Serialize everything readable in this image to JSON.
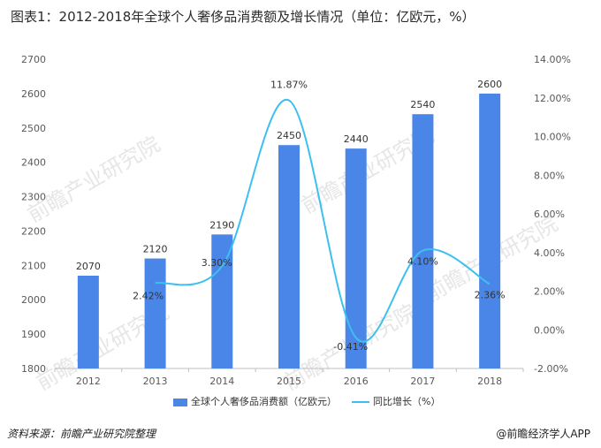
{
  "title": "图表1：2012-2018年全球个人奢侈品消费额及增长情况（单位：亿欧元，%）",
  "footer": {
    "source": "资料来源：前瞻产业研究院整理",
    "brand": "@前瞻经济学人APP"
  },
  "watermark": "前瞻产业研究院",
  "colors": {
    "bar": "#4a86e8",
    "line": "#3cc0ef",
    "axis": "#bfbfbf",
    "text": "#595959"
  },
  "chart_data": {
    "type": "bar",
    "categories": [
      "2012",
      "2013",
      "2014",
      "2015",
      "2016",
      "2017",
      "2018"
    ],
    "series": [
      {
        "name": "全球个人奢侈品消费额（亿欧元）",
        "type": "bar",
        "axis": "left",
        "values": [
          2070,
          2120,
          2190,
          2450,
          2440,
          2540,
          2600
        ],
        "labels": [
          "2070",
          "2120",
          "2190",
          "2450",
          "2440",
          "2540",
          "2600"
        ]
      },
      {
        "name": "同比增长（%）",
        "type": "line",
        "axis": "right",
        "smooth": true,
        "x": [
          "2013",
          "2014",
          "2015",
          "2016",
          "2017",
          "2018"
        ],
        "values": [
          2.42,
          3.3,
          11.87,
          -0.41,
          4.1,
          2.36
        ],
        "labels": [
          "2.42%",
          "3.30%",
          "11.87%",
          "-0.41%",
          "4.10%",
          "2.36%"
        ]
      }
    ],
    "y_left": {
      "min": 1800,
      "max": 2700,
      "step": 100,
      "ticks": [
        "1800",
        "1900",
        "2000",
        "2100",
        "2200",
        "2300",
        "2400",
        "2500",
        "2600",
        "2700"
      ]
    },
    "y_right": {
      "min": -2,
      "max": 14,
      "step": 2,
      "ticks": [
        "-2.00%",
        "0.00%",
        "2.00%",
        "4.00%",
        "6.00%",
        "8.00%",
        "10.00%",
        "12.00%",
        "14.00%"
      ]
    },
    "legend_position": "bottom",
    "grid": false
  }
}
